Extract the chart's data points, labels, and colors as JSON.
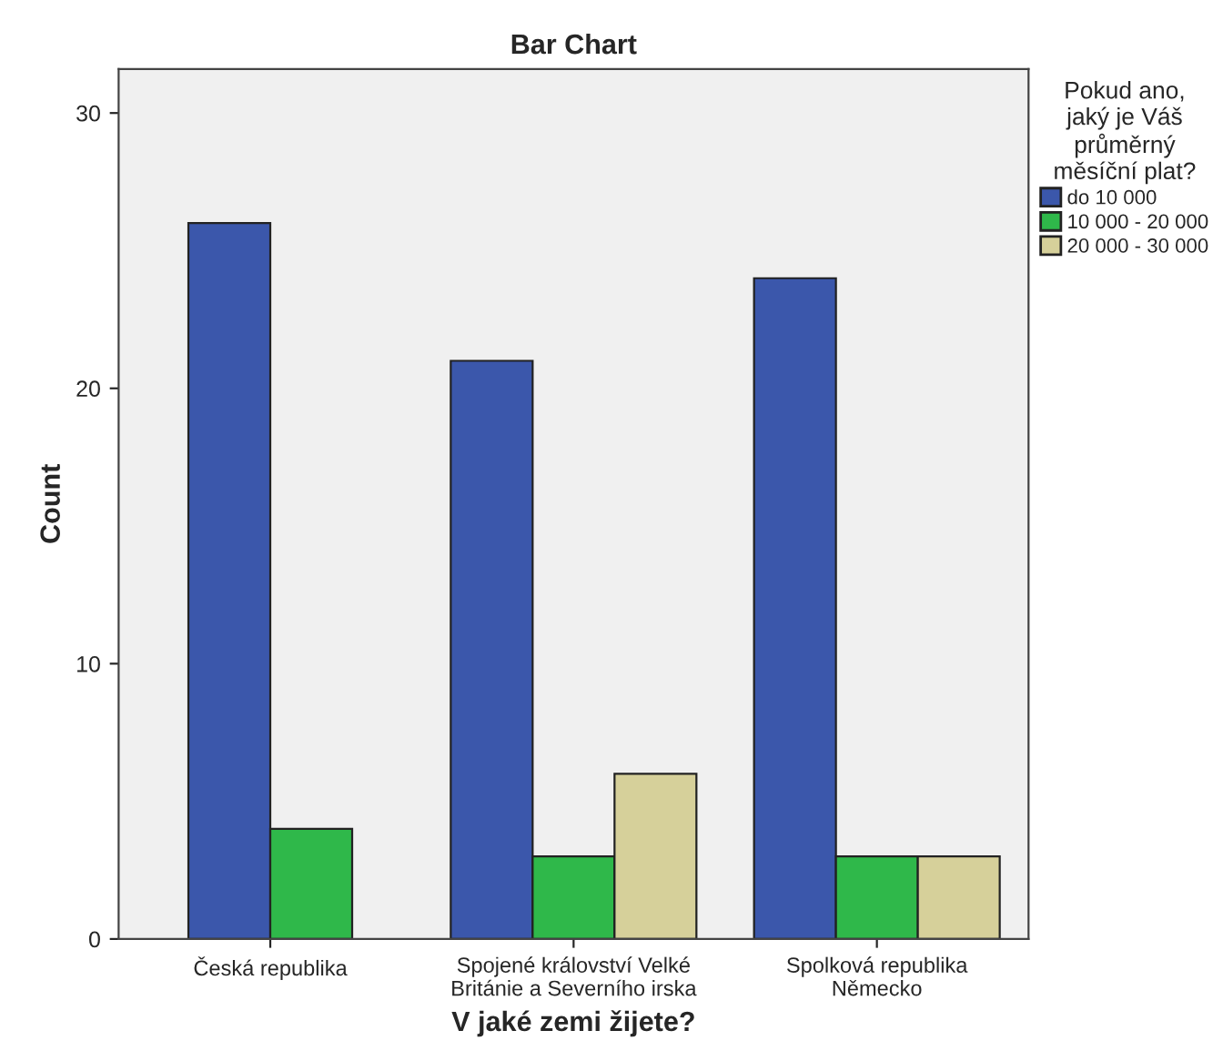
{
  "chart_data": {
    "type": "bar",
    "title": "Bar Chart",
    "xlabel": "V jaké zemi žijete?",
    "ylabel": "Count",
    "legend_title": "Pokud ano,\njaký je Váš\nprůměrný\nměsíční plat?",
    "categories": [
      "Česká republika",
      "Spojené království Velké\nBritánie a Severního irska",
      "Spolková republika\nNěmecko"
    ],
    "series": [
      {
        "name": "do 10 000",
        "color": "#3b57ab",
        "values": [
          26,
          21,
          24
        ]
      },
      {
        "name": "10 000 - 20 000",
        "color": "#2fb84a",
        "values": [
          4,
          3,
          3
        ]
      },
      {
        "name": "20 000 - 30 000",
        "color": "#d6d09a",
        "values": [
          null,
          6,
          3
        ]
      }
    ],
    "ylim": [
      0,
      31.6
    ],
    "yticks": [
      0,
      10,
      20,
      30
    ],
    "grid": false,
    "legend": "right"
  }
}
